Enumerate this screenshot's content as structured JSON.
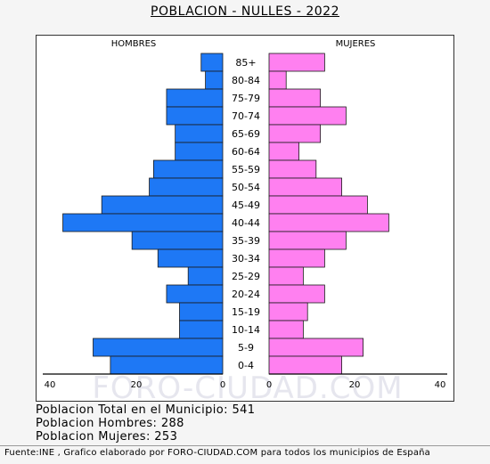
{
  "title": "POBLACION - NULLES - 2022",
  "watermark": "FORO-CIUDAD.COM",
  "summary": {
    "total": "Poblacion Total en el Municipio: 541",
    "men": "Poblacion Hombres: 288",
    "women": "Poblacion Mujeres: 253"
  },
  "source": "Fuente:INE , Grafico elaborado por FORO-CIUDAD.COM para todos los municipios de España",
  "colors": {
    "men": "#1e78f5",
    "women": "#ff80f0"
  },
  "chart_data": {
    "type": "bar",
    "orientation": "horizontal-population-pyramid",
    "categories": [
      "85+",
      "80-84",
      "75-79",
      "70-74",
      "65-69",
      "60-64",
      "55-59",
      "50-54",
      "45-49",
      "40-44",
      "35-39",
      "30-34",
      "25-29",
      "20-24",
      "15-19",
      "10-14",
      "5-9",
      "0-4"
    ],
    "series": [
      {
        "name": "HOMBRES",
        "values": [
          5,
          4,
          13,
          13,
          11,
          11,
          16,
          17,
          28,
          37,
          21,
          15,
          8,
          13,
          10,
          10,
          30,
          26
        ]
      },
      {
        "name": "MUJERES",
        "values": [
          13,
          4,
          12,
          18,
          12,
          7,
          11,
          17,
          23,
          28,
          18,
          13,
          8,
          13,
          9,
          8,
          22,
          17
        ]
      }
    ],
    "xlim": [
      0,
      40
    ],
    "ticks_left": [
      "40",
      "20",
      "0"
    ],
    "ticks_right": [
      "0",
      "20",
      "40"
    ],
    "grid": false
  }
}
